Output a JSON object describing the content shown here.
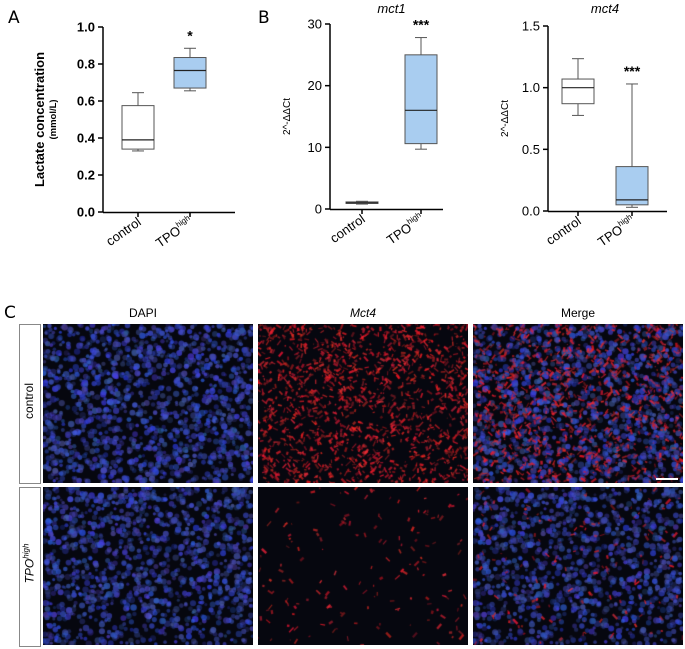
{
  "panels": {
    "A": "A",
    "B": "B",
    "C": "C"
  },
  "chart_data": [
    {
      "id": "lactate",
      "type": "box",
      "title": "",
      "ylabel_main": "Lactate concentration",
      "ylabel_unit": "(mmol/L)",
      "ylim": [
        0,
        1.0
      ],
      "yticks": [
        "0.0",
        "0.2",
        "0.4",
        "0.6",
        "0.8",
        "1.0"
      ],
      "ytick_values": [
        0,
        0.2,
        0.4,
        0.6,
        0.8,
        1.0
      ],
      "categories": [
        "control",
        "TPO"
      ],
      "category_sup": [
        "",
        "high"
      ],
      "boxes": [
        {
          "min": 0.33,
          "q1": 0.34,
          "median": 0.39,
          "q3": 0.575,
          "max": 0.645,
          "color": "#ffffff"
        },
        {
          "min": 0.655,
          "q1": 0.67,
          "median": 0.765,
          "q3": 0.835,
          "max": 0.885,
          "color": "#a9cdf0"
        }
      ],
      "significance": [
        "",
        "*"
      ]
    },
    {
      "id": "mct1",
      "type": "box",
      "title": "mct1",
      "ylabel": "2^-ΔΔCt",
      "ylim": [
        0,
        30
      ],
      "yticks": [
        "0",
        "10",
        "20",
        "30"
      ],
      "ytick_values": [
        0,
        10,
        20,
        30
      ],
      "categories": [
        "control",
        "TPO"
      ],
      "category_sup": [
        "",
        "high"
      ],
      "boxes": [
        {
          "min": 0.8,
          "q1": 0.9,
          "median": 1.0,
          "q3": 1.15,
          "max": 1.25,
          "color": "#ffffff"
        },
        {
          "min": 9.7,
          "q1": 10.6,
          "median": 16.0,
          "q3": 25.0,
          "max": 27.8,
          "color": "#a9cdf0"
        }
      ],
      "significance": [
        "",
        "***"
      ]
    },
    {
      "id": "mct4",
      "type": "box",
      "title": "mct4",
      "ylabel": "2^-ΔΔCt",
      "ylim": [
        0,
        1.5
      ],
      "yticks": [
        "0.0",
        "0.5",
        "1.0",
        "1.5"
      ],
      "ytick_values": [
        0,
        0.5,
        1.0,
        1.5
      ],
      "categories": [
        "control",
        "TPO"
      ],
      "category_sup": [
        "",
        "high"
      ],
      "boxes": [
        {
          "min": 0.775,
          "q1": 0.87,
          "median": 1.0,
          "q3": 1.07,
          "max": 1.235,
          "color": "#ffffff"
        },
        {
          "min": 0.03,
          "q1": 0.05,
          "median": 0.09,
          "q3": 0.36,
          "max": 1.03,
          "color": "#a9cdf0"
        }
      ],
      "significance": [
        "",
        "***"
      ]
    }
  ],
  "microscopy": {
    "columns": [
      "DAPI",
      "Mct4",
      "Merge"
    ],
    "column_colors": [
      "#2f3a8f",
      "#e0141b",
      "#222222"
    ],
    "rows": [
      {
        "label": "control",
        "sup": ""
      },
      {
        "label": "TPO",
        "sup": "high"
      }
    ]
  }
}
